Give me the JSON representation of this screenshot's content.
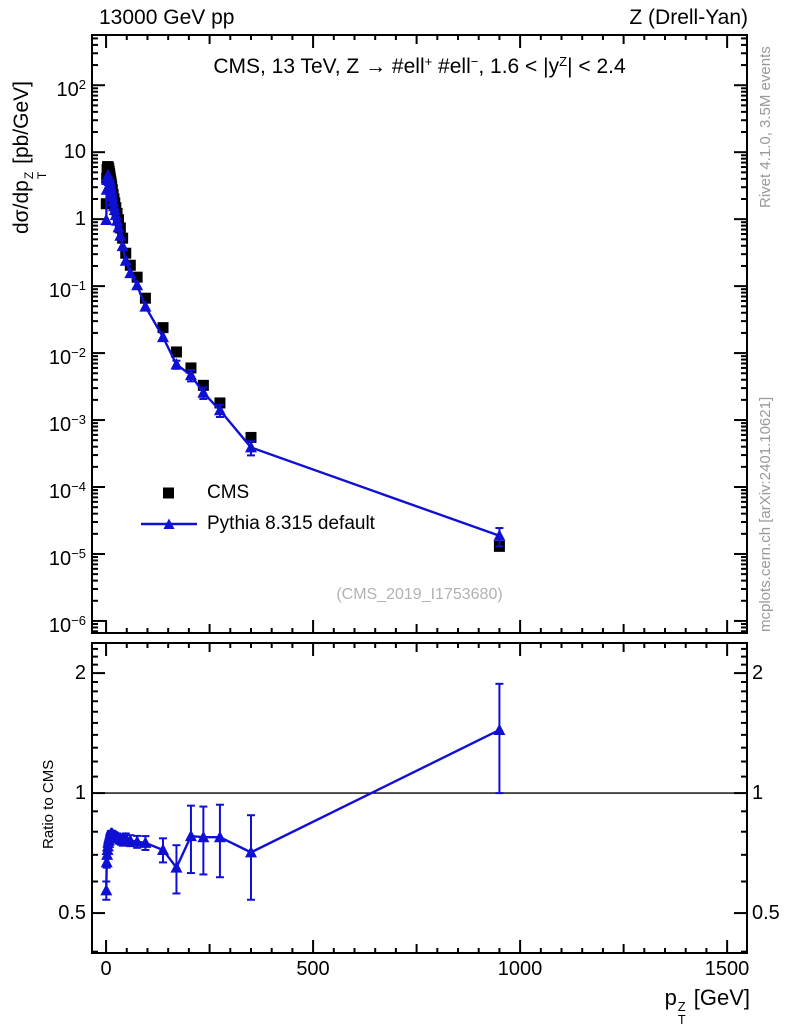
{
  "header": {
    "left": "13000 GeV pp",
    "right": "Z (Drell-Yan)"
  },
  "main_title_segments": [
    {
      "t": "CMS, 13 TeV, Z →  #ell"
    },
    {
      "sup": "+"
    },
    {
      "t": " #ell"
    },
    {
      "sup": "−"
    },
    {
      "t": ", 1.6 < |y"
    },
    {
      "sup": "Z"
    },
    {
      "t": "| < 2.4"
    }
  ],
  "y_axis_title_segments": [
    {
      "t": "dσ/dp"
    },
    {
      "stack": [
        "Z",
        "T"
      ]
    },
    {
      "t": " [pb/GeV]"
    }
  ],
  "x_axis_title_segments": [
    {
      "t": "p"
    },
    {
      "stack": [
        "Z",
        "T"
      ]
    },
    {
      "t": " [GeV]"
    }
  ],
  "ratio_axis_title": "Ratio to CMS",
  "legend": {
    "items": [
      {
        "label": "CMS",
        "marker": "black-square"
      },
      {
        "label": "Pythia 8.315 default",
        "marker": "blue-line-triangle"
      }
    ]
  },
  "watermark": "(CMS_2019_I1753680)",
  "credits": {
    "rivet": "Rivet 4.1.0,  3.5M events",
    "mcplots": "mcplots.cern.ch [arXiv:2401.10621]"
  },
  "colors": {
    "accent_blue": "#1010d4",
    "black": "#000000",
    "muted_gray": "#999999",
    "watermark_gray": "#b2b2b2"
  },
  "chart_data": {
    "type": "line",
    "title": "CMS, 13 TeV, Z -> ell+ ell-, 1.6 < |y_Z| < 2.4",
    "xlabel": "p_T^Z [GeV]",
    "ylabel": "dsigma/dp_T^Z [pb/GeV]",
    "ratio_ylabel": "Ratio to CMS",
    "grid": false,
    "legend_position": "inside-left",
    "axes": {
      "x_range": [
        -34,
        1548
      ],
      "y_exp_range": [
        -6.18,
        2.75
      ],
      "ratio_range": [
        0.397,
        2.38
      ],
      "x_ticks": [
        {
          "t": "0",
          "v": 0
        },
        {
          "t": "500",
          "v": 500
        },
        {
          "t": "1000",
          "v": 1000
        },
        {
          "t": "1500",
          "v": 1500
        }
      ],
      "x_minor_step": 50,
      "x_medium_step": 250,
      "main_y_ticks": [
        {
          "t": "10",
          "e": "2",
          "v": 100
        },
        {
          "t": "10",
          "e": null,
          "v": 10
        },
        {
          "t": "1",
          "e": null,
          "v": 1
        },
        {
          "t": "10",
          "e": "−1",
          "v": 0.1
        },
        {
          "t": "10",
          "e": "−2",
          "v": 0.01
        },
        {
          "t": "10",
          "e": "−3",
          "v": 0.001
        },
        {
          "t": "10",
          "e": "−4",
          "v": 0.0001
        },
        {
          "t": "10",
          "e": "−5",
          "v": 1e-05
        },
        {
          "t": "10",
          "e": "−6",
          "v": 1e-06
        }
      ],
      "ratio_ticks": [
        {
          "t": "2",
          "v": 2
        },
        {
          "t": "1",
          "v": 1
        },
        {
          "t": "0.5",
          "v": 0.5
        }
      ]
    },
    "x": [
      0.5,
      1.5,
      2.5,
      3.5,
      4.5,
      5.5,
      6.5,
      7.5,
      8.5,
      9.5,
      10.5,
      11.5,
      12.5,
      13.5,
      15,
      17,
      19,
      21,
      23.5,
      26.5,
      30,
      34.5,
      40,
      47.5,
      58.5,
      75,
      95,
      137.5,
      170,
      205,
      235,
      275,
      350,
      950
    ],
    "series": [
      {
        "name": "CMS",
        "style": "scatter-square",
        "color": "#000000",
        "values": [
          1.7,
          4.1,
          5.5,
          6.0,
          6.1,
          5.9,
          5.6,
          5.2,
          4.8,
          4.4,
          4.0,
          3.7,
          3.4,
          3.1,
          2.75,
          2.35,
          2.0,
          1.75,
          1.48,
          1.22,
          0.98,
          0.74,
          0.52,
          0.31,
          0.205,
          0.136,
          0.066,
          0.024,
          0.0104,
          0.006,
          0.0033,
          0.0018,
          0.00055,
          1.3e-05
        ]
      },
      {
        "name": "Pythia 8.315 default",
        "style": "line-triangle",
        "color": "#1010d4",
        "values": [
          0.97,
          2.75,
          3.85,
          4.32,
          4.48,
          4.43,
          4.26,
          4.0,
          3.72,
          3.43,
          3.14,
          2.92,
          2.69,
          2.45,
          2.17,
          1.84,
          1.56,
          1.37,
          1.15,
          0.946,
          0.755,
          0.566,
          0.395,
          0.239,
          0.156,
          0.103,
          0.0495,
          0.0173,
          0.00676,
          0.00468,
          0.00256,
          0.0014,
          0.00039,
          1.87e-05
        ],
        "ratio": [
          0.57,
          0.67,
          0.7,
          0.72,
          0.735,
          0.75,
          0.76,
          0.77,
          0.775,
          0.78,
          0.785,
          0.79,
          0.79,
          0.79,
          0.79,
          0.785,
          0.78,
          0.78,
          0.775,
          0.775,
          0.77,
          0.765,
          0.76,
          0.77,
          0.76,
          0.755,
          0.75,
          0.72,
          0.65,
          0.78,
          0.775,
          0.775,
          0.71,
          1.44
        ],
        "ratio_err": [
          0.03,
          0.02,
          0.015,
          0.012,
          0.012,
          0.012,
          0.012,
          0.012,
          0.012,
          0.012,
          0.012,
          0.012,
          0.012,
          0.014,
          0.014,
          0.015,
          0.015,
          0.016,
          0.016,
          0.017,
          0.018,
          0.02,
          0.022,
          0.022,
          0.024,
          0.026,
          0.03,
          0.05,
          0.09,
          0.15,
          0.15,
          0.16,
          0.17,
          0.44
        ]
      }
    ]
  }
}
